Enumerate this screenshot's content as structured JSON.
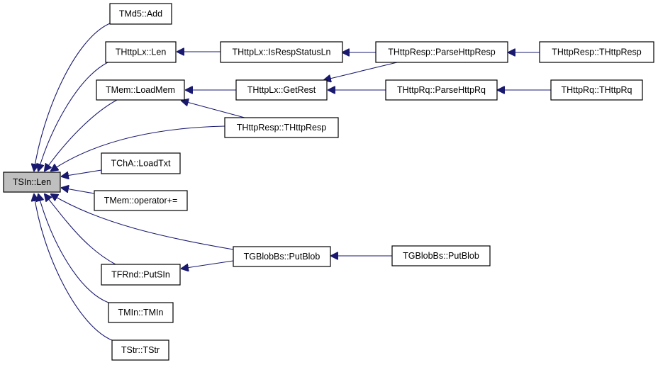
{
  "graph": {
    "root": "TSIn::Len",
    "colors": {
      "edge": "#191970",
      "root_fill": "#bfbfbf",
      "node_fill": "#ffffff",
      "border": "#000000"
    },
    "nodes": {
      "tsin_len": "TSIn::Len",
      "tmd5_add": "TMd5::Add",
      "thttplx_len": "THttpLx::Len",
      "tmem_loadmem": "TMem::LoadMem",
      "tcha_loadtxt": "TChA::LoadTxt",
      "tmem_operator": "TMem::operator+=",
      "tfrnd_putsin": "TFRnd::PutSIn",
      "tmin_tmin": "TMIn::TMIn",
      "tstr_tstr": "TStr::TStr",
      "thttplx_isrespstatusln": "THttpLx::IsRespStatusLn",
      "thttplx_getrest": "THttpLx::GetRest",
      "thttpresp_thttpresp_mid": "THttpResp::THttpResp",
      "tgblobbs_putblob_mid": "TGBlobBs::PutBlob",
      "thttpresp_parsehttpresp": "THttpResp::ParseHttpResp",
      "thttprq_parsehttprq": "THttpRq::ParseHttpRq",
      "tgblobbs_putblob_right": "TGBlobBs::PutBlob",
      "thttpresp_thttpresp_right": "THttpResp::THttpResp",
      "thttprq_thttprq": "THttpRq::THttpRq"
    },
    "edges": [
      [
        "tmd5_add",
        "tsin_len"
      ],
      [
        "thttplx_len",
        "tsin_len"
      ],
      [
        "tmem_loadmem",
        "tsin_len"
      ],
      [
        "thttpresp_thttpresp_mid",
        "tsin_len"
      ],
      [
        "tcha_loadtxt",
        "tsin_len"
      ],
      [
        "tmem_operator",
        "tsin_len"
      ],
      [
        "tgblobbs_putblob_mid",
        "tsin_len"
      ],
      [
        "tfrnd_putsin",
        "tsin_len"
      ],
      [
        "tmin_tmin",
        "tsin_len"
      ],
      [
        "tstr_tstr",
        "tsin_len"
      ],
      [
        "thttplx_isrespstatusln",
        "thttplx_len"
      ],
      [
        "thttplx_getrest",
        "tmem_loadmem"
      ],
      [
        "thttpresp_thttpresp_mid",
        "tmem_loadmem"
      ],
      [
        "thttpresp_parsehttpresp",
        "thttplx_isrespstatusln"
      ],
      [
        "thttpresp_parsehttpresp",
        "thttplx_getrest"
      ],
      [
        "thttprq_parsehttprq",
        "thttplx_getrest"
      ],
      [
        "thttpresp_thttpresp_right",
        "thttpresp_parsehttpresp"
      ],
      [
        "thttprq_thttprq",
        "thttprq_parsehttprq"
      ],
      [
        "tgblobbs_putblob_right",
        "tgblobbs_putblob_mid"
      ],
      [
        "tgblobbs_putblob_mid",
        "tfrnd_putsin"
      ]
    ]
  }
}
